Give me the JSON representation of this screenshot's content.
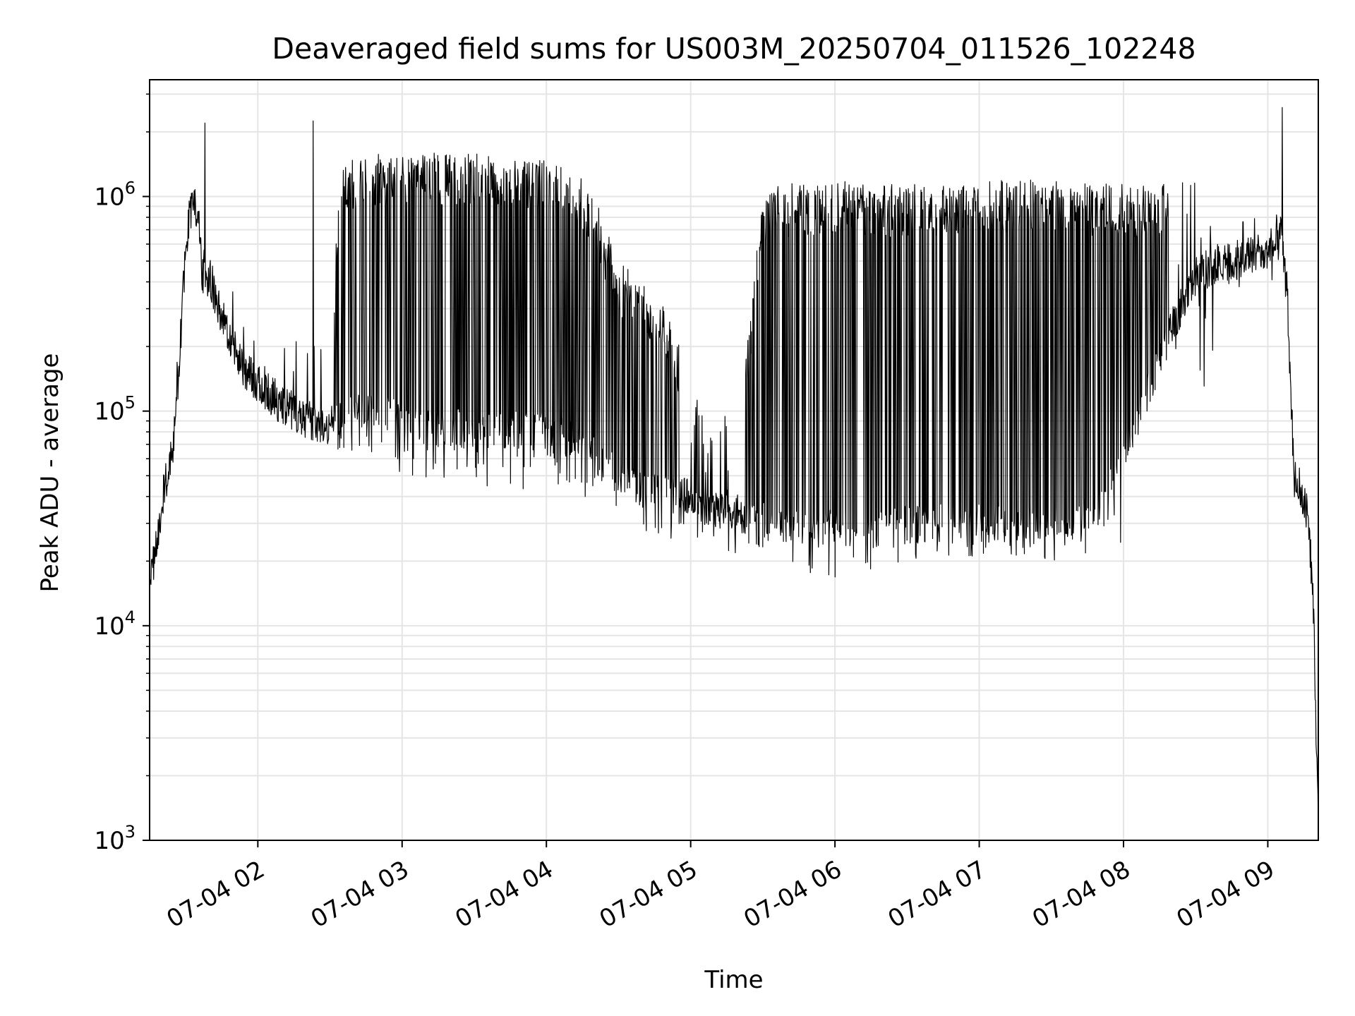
{
  "chart_data": {
    "type": "line",
    "title": "Deaveraged field sums for US003M_20250704_011526_102248",
    "xlabel": "Time",
    "ylabel": "Peak ADU - average",
    "yscale": "log",
    "ylim": [
      1000,
      3500000
    ],
    "xlim": [
      "2025-07-04 01:15",
      "2025-07-04 09:21"
    ],
    "xtick_labels": [
      "07-04 02",
      "07-04 03",
      "07-04 04",
      "07-04 05",
      "07-04 06",
      "07-04 07",
      "07-04 08",
      "07-04 09"
    ],
    "xtick_values": [
      "2025-07-04 02:00",
      "2025-07-04 03:00",
      "2025-07-04 04:00",
      "2025-07-04 05:00",
      "2025-07-04 06:00",
      "2025-07-04 07:00",
      "2025-07-04 08:00",
      "2025-07-04 09:00"
    ],
    "ytick_values": [
      1000,
      10000,
      100000,
      1000000
    ],
    "ytick_labels": [
      {
        "base": "10",
        "exp": "3"
      },
      {
        "base": "10",
        "exp": "4"
      },
      {
        "base": "10",
        "exp": "5"
      },
      {
        "base": "10",
        "exp": "6"
      }
    ],
    "grid": true,
    "line_color": "#000000",
    "grid_color": "#e5e5e5",
    "series": [
      {
        "x": [
          "01:15",
          "01:17",
          "01:19",
          "01:21",
          "01:23",
          "01:25",
          "01:27",
          "01:29",
          "01:31",
          "01:33",
          "01:35",
          "01:37",
          "01:39",
          "01:41",
          "01:43",
          "01:45",
          "01:48",
          "01:51",
          "01:54",
          "01:57",
          "02:00",
          "02:04",
          "02:08",
          "02:12",
          "02:16",
          "02:20",
          "02:25",
          "02:30",
          "02:35",
          "02:40",
          "02:45",
          "02:50",
          "02:55",
          "03:00",
          "03:10",
          "03:20",
          "03:30",
          "03:40",
          "03:50",
          "04:00",
          "04:10",
          "04:20",
          "04:30",
          "04:40",
          "04:50",
          "05:00",
          "05:10",
          "05:20",
          "05:30",
          "05:40",
          "05:50",
          "06:00",
          "06:10",
          "06:20",
          "06:30",
          "06:40",
          "06:50",
          "07:00",
          "07:10",
          "07:20",
          "07:30",
          "07:40",
          "07:50",
          "08:00",
          "08:10",
          "08:20",
          "08:30",
          "08:40",
          "08:50",
          "09:00",
          "09:05",
          "09:08",
          "09:11",
          "09:14",
          "09:17",
          "09:19",
          "09:20",
          "09:21"
        ],
        "low": [
          12000,
          17000,
          25000,
          35000,
          45000,
          60000,
          120000,
          300000,
          600000,
          800000,
          700000,
          350000,
          330000,
          300000,
          260000,
          230000,
          190000,
          150000,
          130000,
          120000,
          110000,
          100000,
          90000,
          85000,
          80000,
          75000,
          72000,
          70000,
          75000,
          80000,
          80000,
          85000,
          80000,
          75000,
          70000,
          68000,
          67000,
          66000,
          66000,
          65000,
          60000,
          50000,
          40000,
          35000,
          33000,
          32000,
          28000,
          26000,
          25000,
          24000,
          23000,
          23000,
          23000,
          23000,
          24000,
          24000,
          25000,
          25000,
          25000,
          25000,
          24000,
          25000,
          30000,
          50000,
          100000,
          200000,
          350000,
          400000,
          420000,
          450000,
          600000,
          300000,
          40000,
          35000,
          25000,
          10000,
          3000,
          1000
        ],
        "high": [
          18000,
          25000,
          35000,
          48000,
          60000,
          90000,
          250000,
          600000,
          1000000,
          1100000,
          1000000,
          700000,
          700000,
          650000,
          600000,
          500000,
          400000,
          350000,
          300000,
          280000,
          260000,
          250000,
          240000,
          230000,
          220000,
          220000,
          240000,
          250000,
          1500000,
          1550000,
          1600000,
          1600000,
          1600000,
          1650000,
          1600000,
          1600000,
          1600000,
          1600000,
          1550000,
          1500000,
          1450000,
          1000000,
          500000,
          400000,
          300000,
          150000,
          100000,
          90000,
          1100000,
          1150000,
          1150000,
          1200000,
          1150000,
          1150000,
          1150000,
          1150000,
          1200000,
          1200000,
          1200000,
          1200000,
          1200000,
          1200000,
          1150000,
          1150000,
          1150000,
          1150000,
          1200000,
          1300000,
          1400000,
          1200000,
          1300000,
          900000,
          45000,
          40000,
          30000,
          15000,
          5000,
          1500
        ],
        "spike_min": [
          13000,
          18000,
          25000,
          35000,
          45000,
          60000,
          130000,
          320000,
          600000,
          800000,
          700000,
          350000,
          330000,
          300000,
          260000,
          230000,
          190000,
          150000,
          130000,
          120000,
          110000,
          100000,
          90000,
          85000,
          80000,
          75000,
          72000,
          70000,
          55000,
          55000,
          52000,
          50000,
          48000,
          48000,
          48000,
          45000,
          45000,
          43000,
          42000,
          40000,
          40000,
          38000,
          32000,
          28000,
          25000,
          22000,
          20000,
          19000,
          18000,
          17000,
          16000,
          16000,
          17000,
          18000,
          19000,
          19000,
          20000,
          20000,
          20000,
          20000,
          20000,
          21000,
          22000,
          24000,
          30000,
          45000,
          60000,
          100000,
          200000,
          350000,
          500000,
          300000,
          40000,
          35000,
          25000,
          10000,
          3000,
          1000
        ]
      }
    ],
    "notable_peaks": [
      {
        "x": "01:38",
        "y": 2200000
      },
      {
        "x": "02:23",
        "y": 2250000
      },
      {
        "x": "09:06",
        "y": 2600000
      }
    ]
  }
}
